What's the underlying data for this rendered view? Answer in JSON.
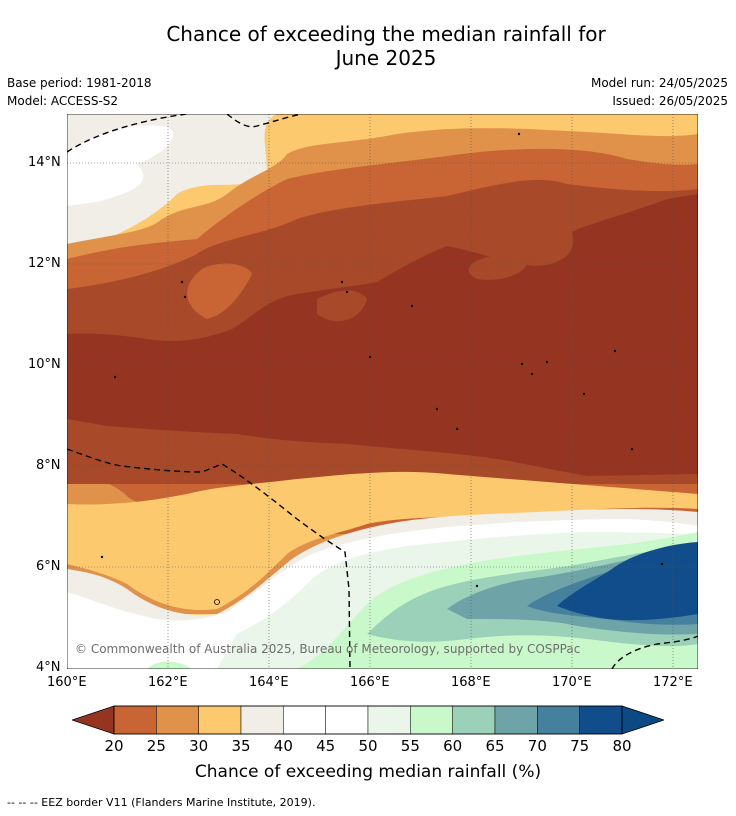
{
  "title_line1": "Chance of exceeding the median rainfall for",
  "title_line2": "June 2025",
  "base_period": "Base period: 1981-2018",
  "model": "Model: ACCESS-S2",
  "model_run": "Model run: 24/05/2025",
  "issued": "Issued: 26/05/2025",
  "copyright": "© Commonwealth of Australia 2025, Bureau of Meteorology, supported by COSPPac",
  "lon_labels": [
    "160°E",
    "162°E",
    "164°E",
    "166°E",
    "168°E",
    "170°E",
    "172°E"
  ],
  "lat_labels": [
    "14°N",
    "12°N",
    "10°N",
    "8°N",
    "6°N",
    "4°N"
  ],
  "colorbar": {
    "title": "Chance of exceeding median rainfall (%)",
    "ticks": [
      "20",
      "25",
      "30",
      "35",
      "40",
      "45",
      "50",
      "55",
      "60",
      "65",
      "70",
      "75",
      "80"
    ],
    "colors": [
      "#a84a2a",
      "#c96534",
      "#e0924a",
      "#fdc96e",
      "#f1ede7",
      "#ffffff",
      "#ffffff",
      "#eaf6ea",
      "#c9f9cb",
      "#9bd1b9",
      "#6ea4a8",
      "#46809f",
      "#114d8a"
    ],
    "low_color": "#963422",
    "high_color": "#0d4a85"
  },
  "footer": "--  --  -- EEZ border V11 (Flanders Marine Institute, 2019)."
}
